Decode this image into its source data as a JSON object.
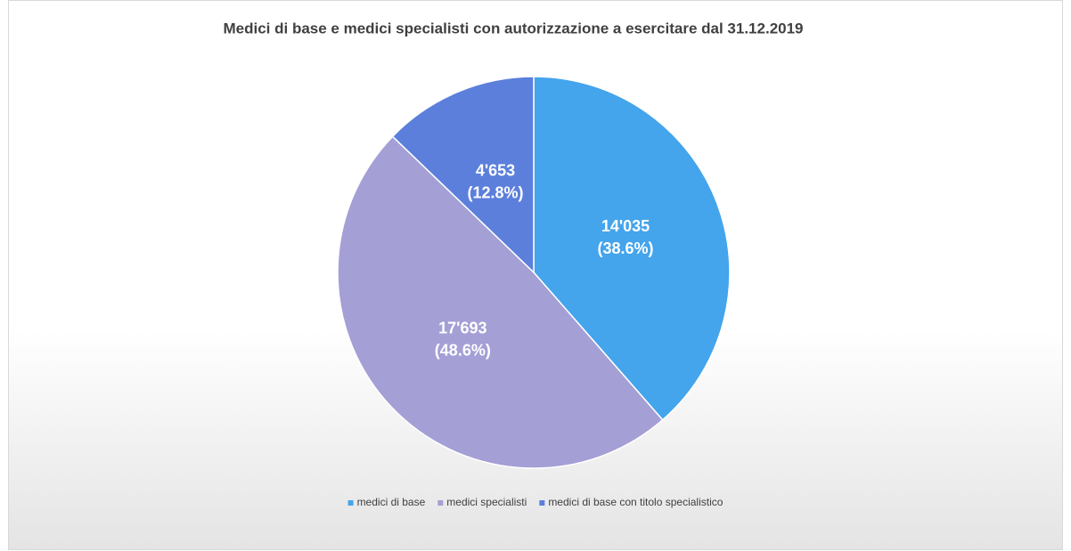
{
  "chart_data": {
    "type": "pie",
    "title": "Medici di base e medici specialisti con autorizzazione a esercitare dal 31.12.2019",
    "categories": [
      "medici di base",
      "medici specialisti",
      "medici di base con titolo specialistico"
    ],
    "values": [
      14035,
      17693,
      4653
    ],
    "value_labels": [
      "14'035",
      "17'693",
      "4'653"
    ],
    "percents": [
      38.6,
      48.6,
      12.8
    ],
    "percent_labels": [
      "(38.6%)",
      "(48.6%)",
      "(12.8%)"
    ],
    "colors": [
      "#44a4ec",
      "#a49fd5",
      "#5b7fdb"
    ],
    "legend": "bottom"
  }
}
